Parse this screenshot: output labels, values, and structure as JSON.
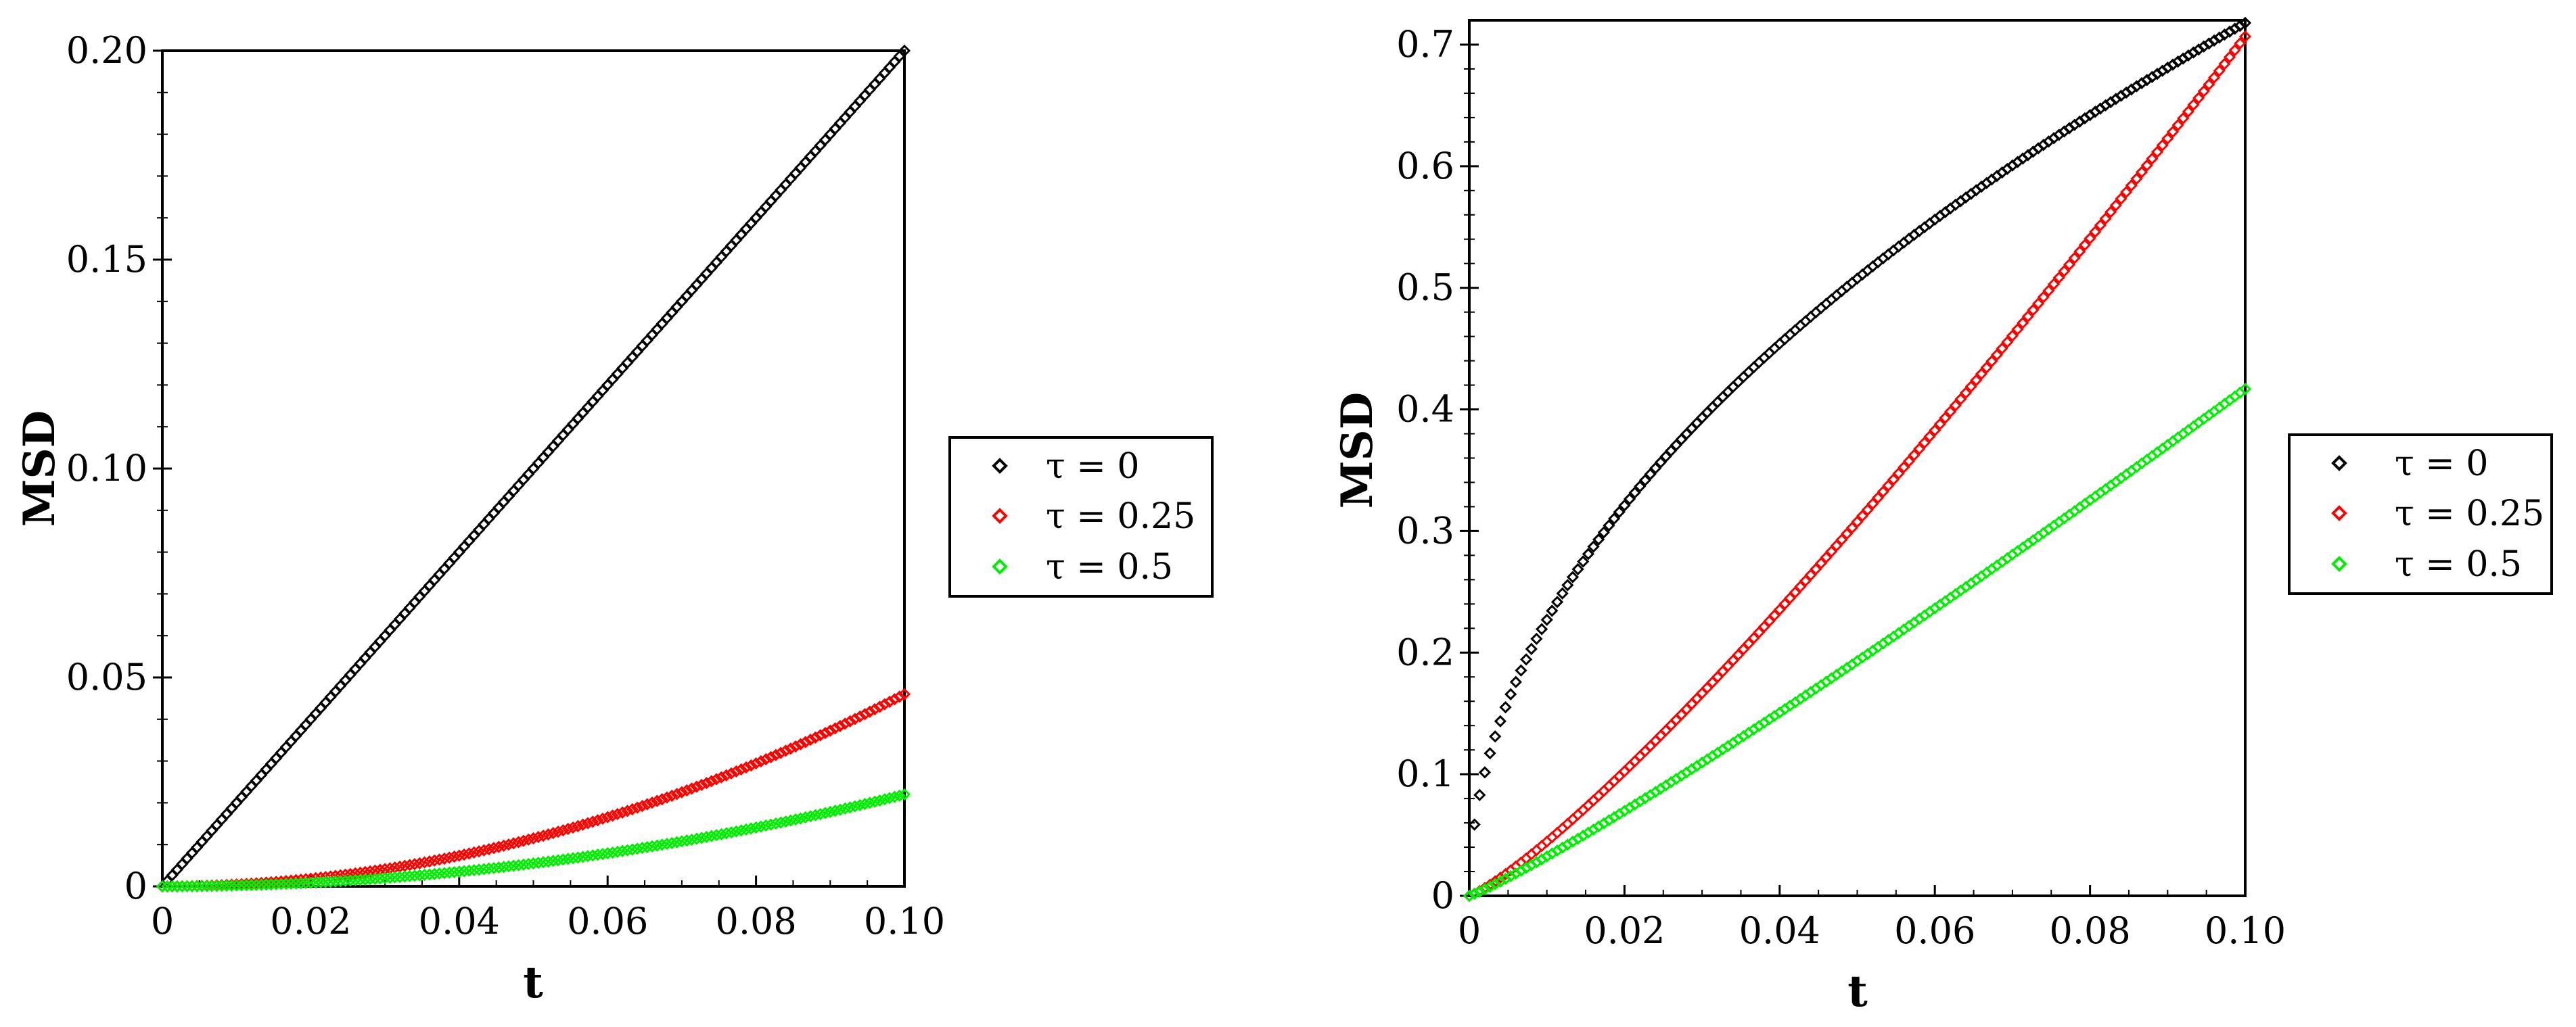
{
  "chart_data": [
    {
      "type": "scatter",
      "title": "",
      "xlabel": "t",
      "ylabel": "MSD",
      "xlim": [
        0,
        0.1
      ],
      "ylim": [
        0,
        0.2
      ],
      "xticks": [
        0,
        0.02,
        0.04,
        0.06,
        0.08,
        0.1
      ],
      "xtick_labels": [
        "0",
        "0.02",
        "0.04",
        "0.06",
        "0.08",
        "0.10"
      ],
      "yticks": [
        0,
        0.05,
        0.1,
        0.15,
        0.2
      ],
      "ytick_labels": [
        "0",
        "0.05",
        "0.10",
        "0.15",
        "0.20"
      ],
      "grid": false,
      "legend_position": "right",
      "n_points": 150,
      "series": [
        {
          "name": "τ = 0",
          "color": "#000000",
          "formula": "linear",
          "a": 2.0,
          "b": 1.0
        },
        {
          "name": "τ = 0.25",
          "color": "#ff0000",
          "formula": "power",
          "a": 4.6,
          "b": 2.0
        },
        {
          "name": "τ = 0.5",
          "color": "#00ee00",
          "formula": "power",
          "a": 2.2,
          "b": 2.0
        }
      ]
    },
    {
      "type": "scatter",
      "title": "",
      "xlabel": "t",
      "ylabel": "MSD",
      "xlim": [
        0,
        0.1
      ],
      "ylim": [
        0,
        0.72
      ],
      "xticks": [
        0,
        0.02,
        0.04,
        0.06,
        0.08,
        0.1
      ],
      "xtick_labels": [
        "0",
        "0.02",
        "0.04",
        "0.06",
        "0.08",
        "0.10"
      ],
      "yticks": [
        0,
        0.1,
        0.2,
        0.3,
        0.4,
        0.5,
        0.6,
        0.7
      ],
      "ytick_labels": [
        "0",
        "0.1",
        "0.2",
        "0.3",
        "0.4",
        "0.5",
        "0.6",
        "0.7"
      ],
      "grid": false,
      "legend_position": "right",
      "n_points": 150,
      "series": [
        {
          "name": "τ = 0",
          "color": "#000000",
          "formula": "power",
          "a": 2.27,
          "b": 0.5
        },
        {
          "name": "τ = 0.25",
          "color": "#ff0000",
          "formula": "power",
          "a": 11.2,
          "b": 1.2
        },
        {
          "name": "τ = 0.5",
          "color": "#00ee00",
          "formula": "power",
          "a": 5.37,
          "b": 1.11
        }
      ]
    }
  ]
}
